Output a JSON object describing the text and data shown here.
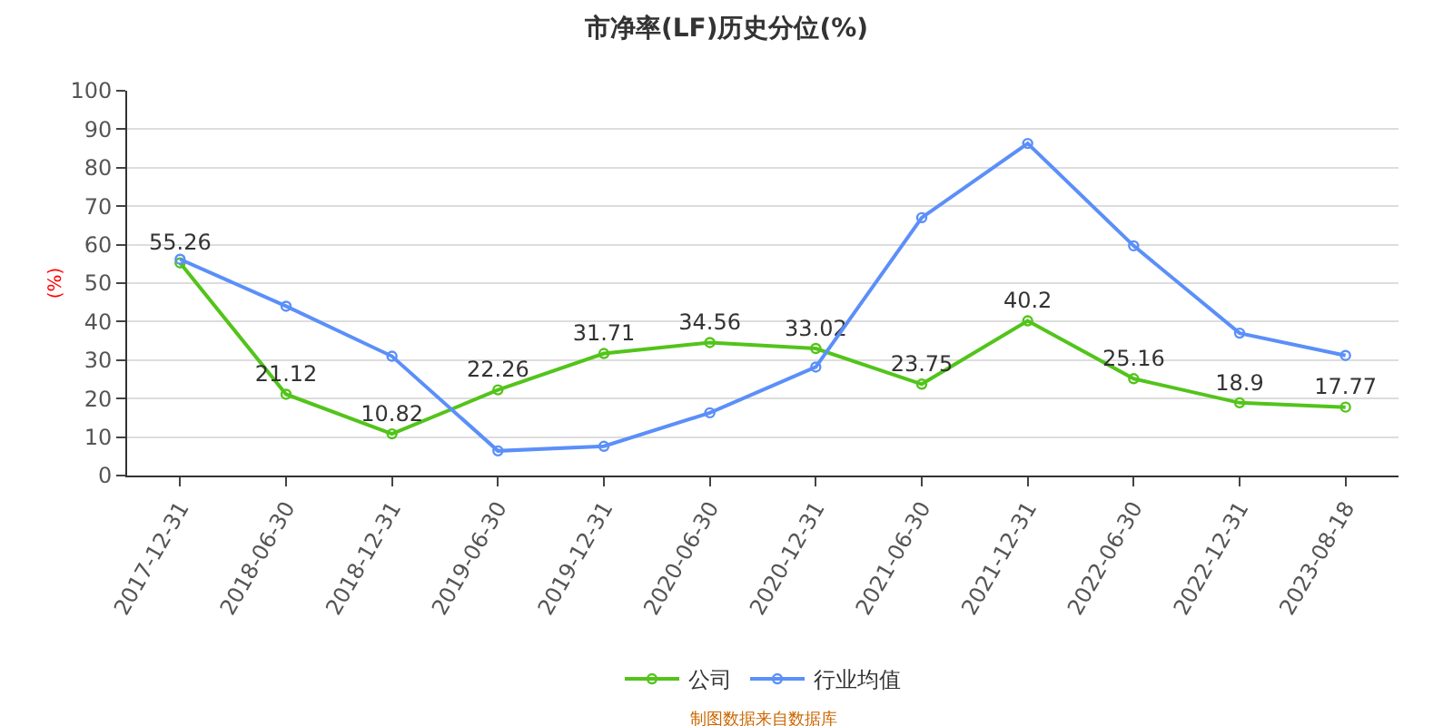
{
  "chart_data": {
    "type": "line",
    "title": "市净率(LF)历史分位(%)",
    "ylabel": "(%)",
    "categories": [
      "2017-12-31",
      "2018-06-30",
      "2018-12-31",
      "2019-06-30",
      "2019-12-31",
      "2020-06-30",
      "2020-12-31",
      "2021-06-30",
      "2021-12-31",
      "2022-06-30",
      "2022-12-31",
      "2023-08-18"
    ],
    "series": [
      {
        "name": "公司",
        "color": "#52c41a",
        "values": [
          55.26,
          21.12,
          10.82,
          22.26,
          31.71,
          34.56,
          33.02,
          23.75,
          40.2,
          25.16,
          18.9,
          17.77
        ],
        "data_labels": true
      },
      {
        "name": "行业均值",
        "color": "#5b8ff9",
        "values": [
          56.2,
          44,
          31,
          6.4,
          7.6,
          16.3,
          28.2,
          67,
          86.3,
          59.7,
          37,
          31.2
        ]
      }
    ],
    "ylim": [
      0,
      100
    ],
    "yticks": [
      0,
      10,
      20,
      30,
      40,
      50,
      60,
      70,
      80,
      90,
      100
    ],
    "grid": "y",
    "legend": "bottom",
    "marker": "circle",
    "line_style": "solid",
    "annotations": [
      "制图数据来自数据库"
    ]
  }
}
